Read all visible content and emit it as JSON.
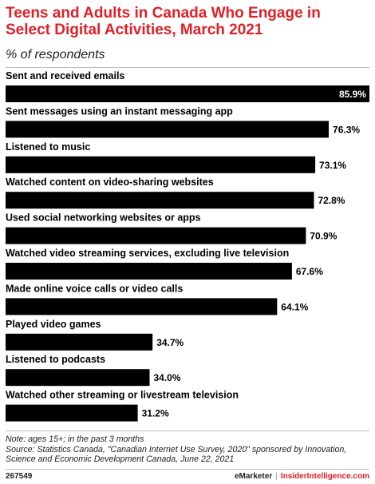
{
  "title": "Teens and Adults in Canada Who Engage in Select Digital Activities, March 2021",
  "subtitle": "% of respondents",
  "chart_data": {
    "type": "bar",
    "orientation": "horizontal",
    "categories": [
      "Sent and received emails",
      "Sent messages using an instant messaging app",
      "Listened to music",
      "Watched content on video-sharing websites",
      "Used social networking websites or apps",
      "Watched video streaming services, excluding live television",
      "Made online voice calls or video calls",
      "Played video games",
      "Listened to podcasts",
      "Watched other streaming or livestream television"
    ],
    "values": [
      85.9,
      76.3,
      73.1,
      72.8,
      70.9,
      67.6,
      64.1,
      34.7,
      34.0,
      31.2
    ],
    "labels": [
      "85.9%",
      "76.3%",
      "73.1%",
      "72.8%",
      "70.9%",
      "67.6%",
      "64.1%",
      "34.7%",
      "34.0%",
      "31.2%"
    ],
    "xlim": [
      0,
      85.9
    ],
    "bar_color": "#000000",
    "grid": false
  },
  "notes": {
    "note": "Note: ages 15+; in the past 3 months",
    "source_line1": "Source: Statistics Canada, \"Canadian Internet Use Survey, 2020\" sponsored by Innovation,",
    "source_line2": "Science and Economic Development Canada, June 22, 2021"
  },
  "footer": {
    "chart_id": "267549",
    "brand": "eMarketer",
    "separator": "|",
    "site": "InsiderIntelligence.com"
  },
  "colors": {
    "title": "#e21f26",
    "bar": "#000000",
    "label_inside": "#ffffff"
  }
}
